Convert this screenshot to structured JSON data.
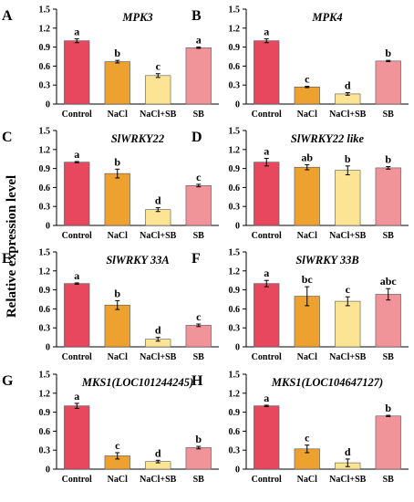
{
  "figure": {
    "ylabel": "Relative expression level",
    "colors": {
      "Control": "#e8485e",
      "NaCl": "#eda12f",
      "NaCl+SB": "#fbe594",
      "SB": "#f0949a",
      "axis": "#000000"
    }
  },
  "chart_data": [
    {
      "panel": "A",
      "title": "MPK3",
      "type": "bar",
      "categories": [
        "Control",
        "NaCl",
        "NaCl+SB",
        "SB"
      ],
      "ylim": [
        0,
        1.5
      ],
      "yticks": [
        "0",
        "0.3",
        "0.6",
        "0.9",
        "1.2",
        "1.5"
      ],
      "values": [
        1.0,
        0.67,
        0.45,
        0.89
      ],
      "errors": [
        0.03,
        0.02,
        0.03,
        0.01
      ],
      "letters": [
        "a",
        "b",
        "c",
        "a"
      ]
    },
    {
      "panel": "B",
      "title": "MPK4",
      "type": "bar",
      "categories": [
        "Control",
        "NaCl",
        "NaCl+SB",
        "SB"
      ],
      "ylim": [
        0,
        1.5
      ],
      "yticks": [
        "0",
        "0.3",
        "0.6",
        "0.9",
        "1.2",
        "1.5"
      ],
      "values": [
        1.0,
        0.27,
        0.16,
        0.68
      ],
      "errors": [
        0.03,
        0.01,
        0.02,
        0.01
      ],
      "letters": [
        "a",
        "c",
        "d",
        "b"
      ]
    },
    {
      "panel": "C",
      "title": "SlWRKY22",
      "type": "bar",
      "categories": [
        "Control",
        "NaCl",
        "NaCl+SB",
        "SB"
      ],
      "ylim": [
        0,
        1.5
      ],
      "yticks": [
        "0",
        "0.3",
        "0.6",
        "0.9",
        "1.2",
        "1.5"
      ],
      "values": [
        1.0,
        0.82,
        0.25,
        0.63
      ],
      "errors": [
        0.01,
        0.07,
        0.03,
        0.02
      ],
      "letters": [
        "a",
        "b",
        "d",
        "c"
      ]
    },
    {
      "panel": "D",
      "title": "SlWRKY22 like",
      "type": "bar",
      "categories": [
        "Control",
        "NaCl",
        "NaCl+SB",
        "SB"
      ],
      "ylim": [
        0,
        1.5
      ],
      "yticks": [
        "0",
        "0.3",
        "0.6",
        "0.9",
        "1.2",
        "1.5"
      ],
      "values": [
        1.0,
        0.92,
        0.87,
        0.91
      ],
      "errors": [
        0.06,
        0.04,
        0.07,
        0.02
      ],
      "letters": [
        "a",
        "ab",
        "b",
        "b"
      ]
    },
    {
      "panel": "E",
      "title": "SlWRKY 33A",
      "type": "bar",
      "categories": [
        "Control",
        "NaCl",
        "NaCl+SB",
        "SB"
      ],
      "ylim": [
        0,
        1.5
      ],
      "yticks": [
        "0",
        "0.3",
        "0.6",
        "0.9",
        "1.2",
        "1.5"
      ],
      "values": [
        1.0,
        0.66,
        0.12,
        0.34
      ],
      "errors": [
        0.01,
        0.07,
        0.03,
        0.02
      ],
      "letters": [
        "a",
        "b",
        "d",
        "c"
      ]
    },
    {
      "panel": "F",
      "title": "SlWRKY 33B",
      "type": "bar",
      "categories": [
        "Control",
        "NaCl",
        "NaCl+SB",
        "SB"
      ],
      "ylim": [
        0,
        1.5
      ],
      "yticks": [
        "0",
        "0.3",
        "0.6",
        "0.9",
        "1.2",
        "1.5"
      ],
      "values": [
        1.0,
        0.8,
        0.72,
        0.83
      ],
      "errors": [
        0.05,
        0.15,
        0.07,
        0.09
      ],
      "letters": [
        "a",
        "bc",
        "c",
        "abc"
      ]
    },
    {
      "panel": "G",
      "title": "MKS1(LOC101244245)",
      "type": "bar",
      "categories": [
        "Control",
        "NaCl",
        "NaCl+SB",
        "SB"
      ],
      "ylim": [
        0,
        1.5
      ],
      "yticks": [
        "0",
        "0.3",
        "0.6",
        "0.9",
        "1.2",
        "1.5"
      ],
      "values": [
        1.0,
        0.21,
        0.12,
        0.34
      ],
      "errors": [
        0.04,
        0.05,
        0.02,
        0.02
      ],
      "letters": [
        "a",
        "c",
        "d",
        "b"
      ]
    },
    {
      "panel": "H",
      "title": "MKS1(LOC104647127)",
      "type": "bar",
      "categories": [
        "Control",
        "NaCl",
        "NaCl+SB",
        "SB"
      ],
      "ylim": [
        0,
        1.5
      ],
      "yticks": [
        "0",
        "0.3",
        "0.6",
        "0.9",
        "1.2",
        "1.5"
      ],
      "values": [
        1.0,
        0.32,
        0.1,
        0.84
      ],
      "errors": [
        0.01,
        0.06,
        0.06,
        0.01
      ],
      "letters": [
        "a",
        "c",
        "d",
        "b"
      ]
    }
  ]
}
